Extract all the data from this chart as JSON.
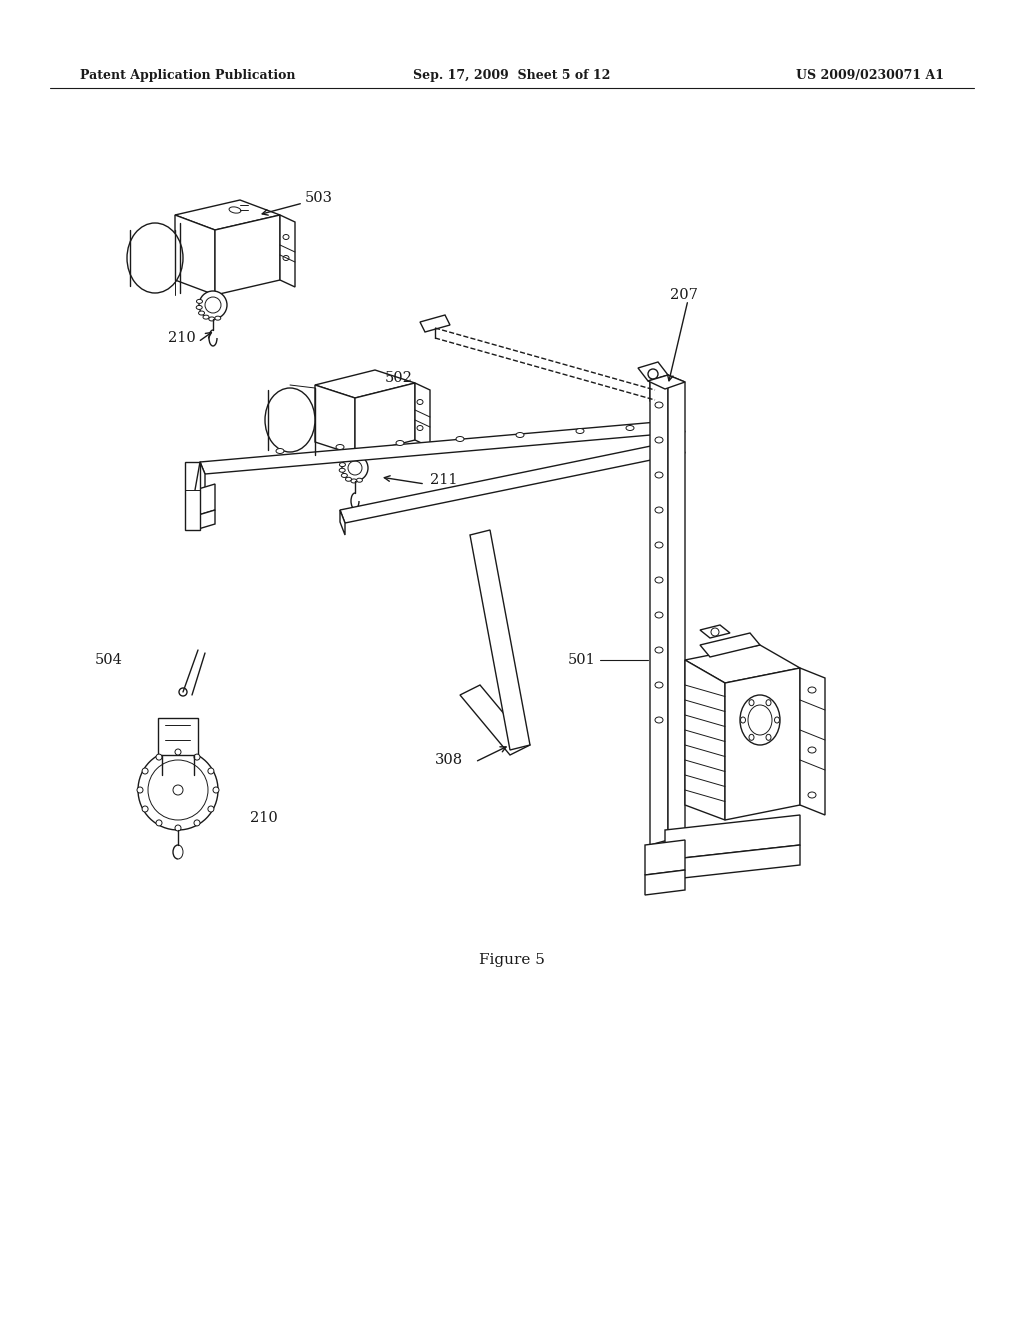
{
  "background_color": "#ffffff",
  "header_left": "Patent Application Publication",
  "header_center": "Sep. 17, 2009  Sheet 5 of 12",
  "header_right": "US 2009/0230071 A1",
  "figure_caption": "Figure 5",
  "line_color": "#1a1a1a",
  "label_color": "#1a1a1a"
}
